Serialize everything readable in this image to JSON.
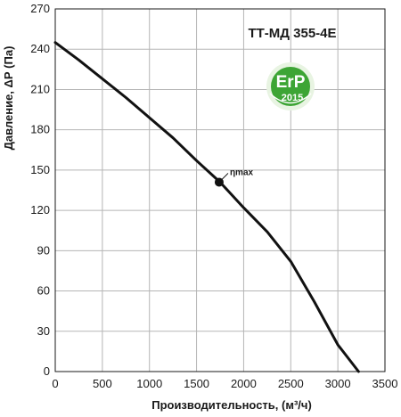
{
  "chart_data": {
    "type": "line",
    "title": "ТТ-МД 355-4E",
    "xlabel": "Производительность, (м³/ч)",
    "ylabel": "Давление, ΔР (Па)",
    "xlim": [
      0,
      3500
    ],
    "ylim": [
      0,
      270
    ],
    "x_ticks": [
      0,
      500,
      1000,
      1500,
      2000,
      2500,
      3000,
      3500
    ],
    "y_ticks": [
      0,
      30,
      60,
      90,
      120,
      150,
      180,
      210,
      240,
      270
    ],
    "grid": true,
    "series": [
      {
        "x": [
          0,
          250,
          500,
          750,
          1000,
          1250,
          1500,
          1750,
          2000,
          2250,
          2500,
          2750,
          3000,
          3220
        ],
        "y": [
          245,
          232,
          218,
          204,
          189,
          174,
          157,
          141,
          122,
          104,
          82,
          52,
          20,
          0
        ]
      }
    ],
    "annotations": [
      {
        "label": "ηmax",
        "x": 1740,
        "y": 141
      }
    ],
    "colors": {
      "line": "#111111",
      "grid": "#b5b5b5",
      "badge": "#3da535"
    }
  },
  "badge": {
    "main": "ErP",
    "year": "2015"
  }
}
